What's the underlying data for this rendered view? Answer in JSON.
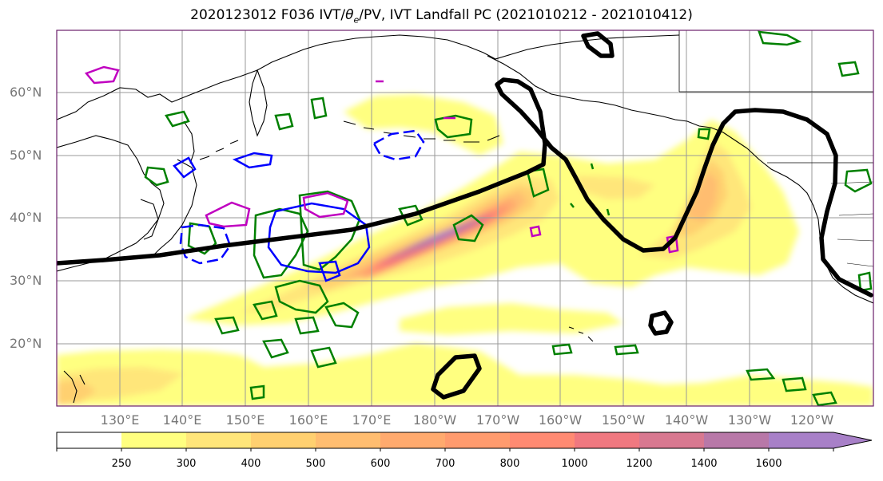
{
  "title": {
    "run": "2020123012 F036 IVT/",
    "theta": "θ",
    "theta_sub": "e",
    "rest": "/PV, IVT Landfall PC (2021010212 - 2021010412)"
  },
  "map": {
    "lat_labels": [
      "60°N",
      "50°N",
      "40°N",
      "30°N",
      "20°N"
    ],
    "lon_labels": [
      "130°E",
      "140°E",
      "150°E",
      "160°E",
      "170°E",
      "180°W",
      "170°W",
      "160°W",
      "150°W",
      "140°W",
      "130°W",
      "120°W"
    ],
    "legend_colors": {
      "pv_contour": "#008000",
      "theta_e_contour": "#0000ff",
      "landfall_pc": "#000000",
      "other_contour": "#c000c0"
    }
  },
  "colorbar": {
    "levels": [
      "250",
      "300",
      "400",
      "500",
      "600",
      "700",
      "800",
      "1000",
      "1200",
      "1400",
      "1600"
    ],
    "colors": [
      "#ffff80",
      "#ffe67a",
      "#ffd070",
      "#ffbd70",
      "#ffaa6e",
      "#ff9b6e",
      "#ff8a72",
      "#f07880",
      "#d87890",
      "#b878a8",
      "#a880c8"
    ]
  }
}
